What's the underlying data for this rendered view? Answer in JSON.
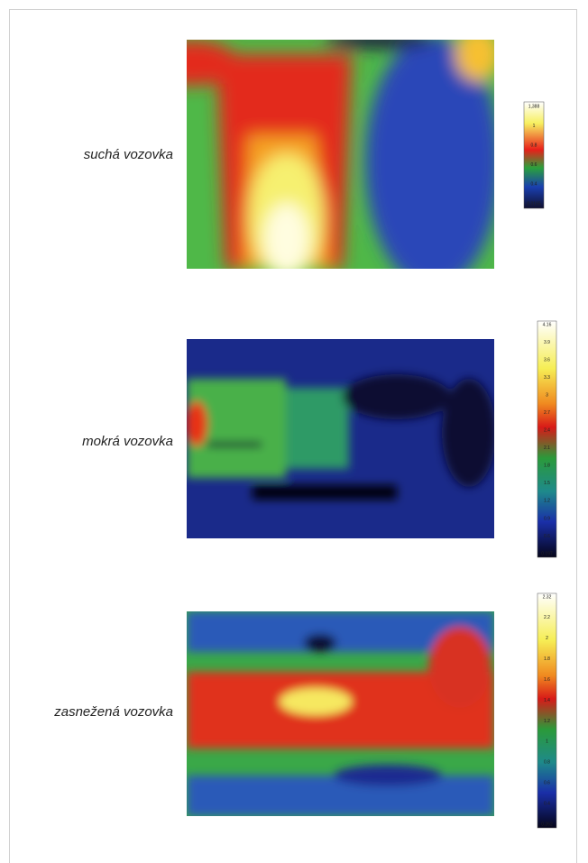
{
  "panels": [
    {
      "label": "suchá vozovka",
      "scale": {
        "ticks": [
          "1,388",
          "1",
          "0.8",
          "0.6",
          "0.4",
          "0.0165"
        ]
      }
    },
    {
      "label": "mokrá vozovka",
      "scale": {
        "ticks": [
          "4.16",
          "3.9",
          "3.6",
          "3.3",
          "3",
          "2.7",
          "2.4",
          "2.1",
          "1.8",
          "1.5",
          "1.2",
          "0.9",
          "0.6",
          "0.197"
        ]
      }
    },
    {
      "label": "zasnežená vozovka",
      "scale": {
        "ticks": [
          "2.32",
          "2.2",
          "2",
          "1.8",
          "1.6",
          "1.4",
          "1.2",
          "1",
          "0.8",
          "0.6",
          "0.4",
          "0.262"
        ]
      }
    }
  ]
}
